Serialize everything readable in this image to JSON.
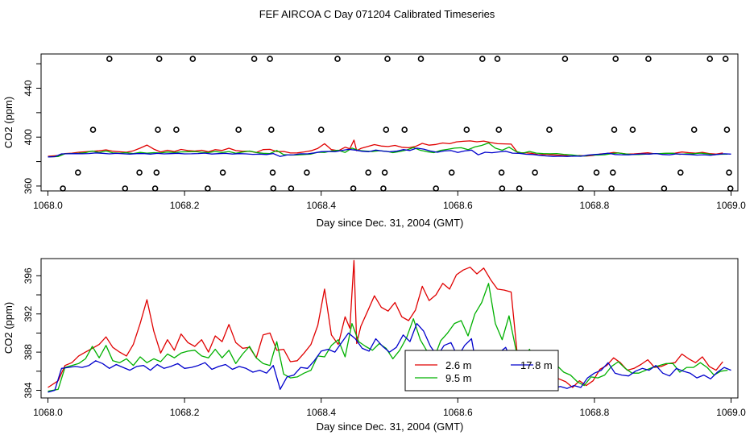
{
  "figure": {
    "title": "FEF AIRCOA C  Day 071204  Calibrated Timeseries"
  },
  "chart_data": [
    {
      "type": "scatter+line",
      "xlabel": "Day since Dec. 31, 2004 (GMT)",
      "ylabel": "CO2 (ppm)",
      "xlim": [
        1067.99,
        1069.01
      ],
      "ylim": [
        356,
        468
      ],
      "xticks": [
        1068.0,
        1068.2,
        1068.4,
        1068.6,
        1068.8,
        1069.0
      ],
      "xtick_labels": [
        "1068.0",
        "1068.2",
        "1068.4",
        "1068.6",
        "1068.8",
        "1069.0"
      ],
      "yticks": [
        360,
        380,
        400,
        420,
        440,
        460
      ],
      "ytick_labels": [
        "360",
        "",
        "400",
        "",
        "440",
        ""
      ],
      "calibration_points": [
        {
          "x": 1068.09,
          "y": 464
        },
        {
          "x": 1068.163,
          "y": 464
        },
        {
          "x": 1068.212,
          "y": 464
        },
        {
          "x": 1068.302,
          "y": 464
        },
        {
          "x": 1068.325,
          "y": 464
        },
        {
          "x": 1068.424,
          "y": 464
        },
        {
          "x": 1068.497,
          "y": 464
        },
        {
          "x": 1068.546,
          "y": 464
        },
        {
          "x": 1068.636,
          "y": 464
        },
        {
          "x": 1068.658,
          "y": 464
        },
        {
          "x": 1068.757,
          "y": 464
        },
        {
          "x": 1068.831,
          "y": 464
        },
        {
          "x": 1068.879,
          "y": 464
        },
        {
          "x": 1068.969,
          "y": 464
        },
        {
          "x": 1068.992,
          "y": 464
        },
        {
          "x": 1068.066,
          "y": 406
        },
        {
          "x": 1068.161,
          "y": 406
        },
        {
          "x": 1068.188,
          "y": 406
        },
        {
          "x": 1068.279,
          "y": 406
        },
        {
          "x": 1068.327,
          "y": 406
        },
        {
          "x": 1068.4,
          "y": 406
        },
        {
          "x": 1068.495,
          "y": 406
        },
        {
          "x": 1068.522,
          "y": 406
        },
        {
          "x": 1068.613,
          "y": 406
        },
        {
          "x": 1068.66,
          "y": 406
        },
        {
          "x": 1068.734,
          "y": 406
        },
        {
          "x": 1068.829,
          "y": 406
        },
        {
          "x": 1068.856,
          "y": 406
        },
        {
          "x": 1068.946,
          "y": 406
        },
        {
          "x": 1068.994,
          "y": 406
        },
        {
          "x": 1068.044,
          "y": 371
        },
        {
          "x": 1068.134,
          "y": 371
        },
        {
          "x": 1068.159,
          "y": 371
        },
        {
          "x": 1068.256,
          "y": 371
        },
        {
          "x": 1068.329,
          "y": 371
        },
        {
          "x": 1068.379,
          "y": 371
        },
        {
          "x": 1068.469,
          "y": 371
        },
        {
          "x": 1068.493,
          "y": 371
        },
        {
          "x": 1068.591,
          "y": 371
        },
        {
          "x": 1068.664,
          "y": 371
        },
        {
          "x": 1068.713,
          "y": 371
        },
        {
          "x": 1068.803,
          "y": 371
        },
        {
          "x": 1068.827,
          "y": 371
        },
        {
          "x": 1068.926,
          "y": 371
        },
        {
          "x": 1068.997,
          "y": 371
        },
        {
          "x": 1068.022,
          "y": 358
        },
        {
          "x": 1068.113,
          "y": 358
        },
        {
          "x": 1068.157,
          "y": 358
        },
        {
          "x": 1068.234,
          "y": 358
        },
        {
          "x": 1068.33,
          "y": 358
        },
        {
          "x": 1068.356,
          "y": 358
        },
        {
          "x": 1068.447,
          "y": 358
        },
        {
          "x": 1068.491,
          "y": 358
        },
        {
          "x": 1068.568,
          "y": 358
        },
        {
          "x": 1068.665,
          "y": 358
        },
        {
          "x": 1068.69,
          "y": 358
        },
        {
          "x": 1068.78,
          "y": 358
        },
        {
          "x": 1068.825,
          "y": 358
        },
        {
          "x": 1068.902,
          "y": 358
        },
        {
          "x": 1068.999,
          "y": 358
        }
      ]
    },
    {
      "type": "line",
      "xlabel": "Day since Dec. 31, 2004 (GMT)",
      "ylabel": "CO2 (ppm)",
      "xlim": [
        1067.99,
        1069.01
      ],
      "ylim": [
        383.2,
        397.8
      ],
      "xticks": [
        1068.0,
        1068.2,
        1068.4,
        1068.6,
        1068.8,
        1069.0
      ],
      "xtick_labels": [
        "1068.0",
        "1068.2",
        "1068.4",
        "1068.6",
        "1068.8",
        "1069.0"
      ],
      "yticks": [
        384,
        386,
        388,
        390,
        392,
        394,
        396
      ],
      "ytick_labels": [
        "384",
        "",
        "388",
        "",
        "392",
        "",
        "396"
      ],
      "legend_position": "bottom-center",
      "series": [
        {
          "name": "2.6 m",
          "color": "#e00000",
          "x": [
            1068.0,
            1068.015,
            1068.025,
            1068.035,
            1068.045,
            1068.055,
            1068.065,
            1068.075,
            1068.085,
            1068.095,
            1068.105,
            1068.115,
            1068.125,
            1068.135,
            1068.145,
            1068.155,
            1068.165,
            1068.175,
            1068.185,
            1068.195,
            1068.205,
            1068.215,
            1068.225,
            1068.235,
            1068.245,
            1068.255,
            1068.265,
            1068.275,
            1068.285,
            1068.295,
            1068.305,
            1068.315,
            1068.325,
            1068.335,
            1068.345,
            1068.355,
            1068.365,
            1068.375,
            1068.385,
            1068.395,
            1068.405,
            1068.415,
            1068.425,
            1068.435,
            1068.442,
            1068.448,
            1068.452,
            1068.458,
            1068.468,
            1068.478,
            1068.488,
            1068.498,
            1068.508,
            1068.518,
            1068.528,
            1068.538,
            1068.548,
            1068.558,
            1068.568,
            1068.578,
            1068.588,
            1068.598,
            1068.608,
            1068.618,
            1068.628,
            1068.638,
            1068.648,
            1068.658,
            1068.668,
            1068.678,
            1068.688,
            1068.698,
            1068.708,
            1068.718,
            1068.728,
            1068.738,
            1068.748,
            1068.758,
            1068.768,
            1068.778,
            1068.788,
            1068.798,
            1068.808,
            1068.818,
            1068.828,
            1068.838,
            1068.848,
            1068.858,
            1068.868,
            1068.878,
            1068.888,
            1068.898,
            1068.908,
            1068.918,
            1068.928,
            1068.938,
            1068.948,
            1068.958,
            1068.968,
            1068.978,
            1068.988
          ],
          "y": [
            384.3,
            385.0,
            386.6,
            386.9,
            387.6,
            388.0,
            388.4,
            388.8,
            389.6,
            388.5,
            388.0,
            387.6,
            388.8,
            391.0,
            393.5,
            390.2,
            387.9,
            389.3,
            388.2,
            389.9,
            389.0,
            388.6,
            389.3,
            388.0,
            389.7,
            389.1,
            390.9,
            389.0,
            388.4,
            388.5,
            387.4,
            389.8,
            390.0,
            388.2,
            388.3,
            387.0,
            387.1,
            387.9,
            388.8,
            390.8,
            394.6,
            389.8,
            388.8,
            391.7,
            390.5,
            397.6,
            388.9,
            390.7,
            392.3,
            393.9,
            392.7,
            392.3,
            393.2,
            391.7,
            391.3,
            392.4,
            394.9,
            393.4,
            394.0,
            395.2,
            394.6,
            396.1,
            396.6,
            396.9,
            396.2,
            396.8,
            395.6,
            394.6,
            394.5,
            394.3,
            387.1,
            387.2,
            386.8,
            385.6,
            385.9,
            385.5,
            385.2,
            384.9,
            384.3,
            385.0,
            384.5,
            385.0,
            386.2,
            386.6,
            387.4,
            386.9,
            386.1,
            386.3,
            386.7,
            387.2,
            386.4,
            386.5,
            386.8,
            386.9,
            387.8,
            387.3,
            386.9,
            387.5,
            386.5,
            386.1,
            387.0
          ]
        },
        {
          "name": "9.5 m",
          "color": "#00b000",
          "x": [
            1068.0,
            1068.015,
            1068.025,
            1068.035,
            1068.045,
            1068.055,
            1068.065,
            1068.075,
            1068.085,
            1068.095,
            1068.105,
            1068.115,
            1068.125,
            1068.135,
            1068.145,
            1068.155,
            1068.165,
            1068.175,
            1068.185,
            1068.195,
            1068.205,
            1068.215,
            1068.225,
            1068.235,
            1068.245,
            1068.255,
            1068.265,
            1068.275,
            1068.285,
            1068.295,
            1068.305,
            1068.315,
            1068.325,
            1068.335,
            1068.345,
            1068.355,
            1068.365,
            1068.375,
            1068.385,
            1068.395,
            1068.405,
            1068.415,
            1068.425,
            1068.435,
            1068.445,
            1068.455,
            1068.465,
            1068.475,
            1068.485,
            1068.495,
            1068.505,
            1068.515,
            1068.525,
            1068.535,
            1068.545,
            1068.555,
            1068.565,
            1068.575,
            1068.585,
            1068.595,
            1068.605,
            1068.615,
            1068.625,
            1068.635,
            1068.645,
            1068.655,
            1068.665,
            1068.675,
            1068.685,
            1068.695,
            1068.705,
            1068.715,
            1068.725,
            1068.735,
            1068.745,
            1068.755,
            1068.765,
            1068.775,
            1068.785,
            1068.795,
            1068.805,
            1068.815,
            1068.825,
            1068.835,
            1068.845,
            1068.855,
            1068.865,
            1068.875,
            1068.885,
            1068.895,
            1068.905,
            1068.915,
            1068.925,
            1068.935,
            1068.945,
            1068.955,
            1068.965,
            1068.975,
            1068.985,
            1068.995
          ],
          "y": [
            383.9,
            384.1,
            386.4,
            386.6,
            386.8,
            387.3,
            388.6,
            387.4,
            388.7,
            387.1,
            386.9,
            387.3,
            386.6,
            387.5,
            386.9,
            387.3,
            387.0,
            387.8,
            387.4,
            387.9,
            388.1,
            388.2,
            387.6,
            387.4,
            388.3,
            387.4,
            388.2,
            386.8,
            387.8,
            388.6,
            387.4,
            386.8,
            386.6,
            389.1,
            385.7,
            385.3,
            385.4,
            385.8,
            386.1,
            387.6,
            387.5,
            388.7,
            389.3,
            387.5,
            391.0,
            389.1,
            388.6,
            388.2,
            388.9,
            388.4,
            387.3,
            388.2,
            389.5,
            391.5,
            389.3,
            388.1,
            387.3,
            389.2,
            390.0,
            391.0,
            391.3,
            389.7,
            392.0,
            393.2,
            395.2,
            391.0,
            389.3,
            391.8,
            388.3,
            386.9,
            388.3,
            386.9,
            386.6,
            386.4,
            386.6,
            385.9,
            385.6,
            384.9,
            384.5,
            385.4,
            385.3,
            385.6,
            386.5,
            387.0,
            386.3,
            385.8,
            385.8,
            386.1,
            386.4,
            386.6,
            386.8,
            386.8,
            385.9,
            386.4,
            386.4,
            386.9,
            386.4,
            385.6,
            386.0,
            386.1
          ]
        },
        {
          "name": "17.8 m",
          "color": "#0000cc",
          "x": [
            1068.0,
            1068.01,
            1068.02,
            1068.03,
            1068.04,
            1068.05,
            1068.06,
            1068.07,
            1068.08,
            1068.09,
            1068.1,
            1068.11,
            1068.12,
            1068.13,
            1068.14,
            1068.15,
            1068.16,
            1068.17,
            1068.18,
            1068.19,
            1068.2,
            1068.21,
            1068.22,
            1068.23,
            1068.24,
            1068.25,
            1068.26,
            1068.27,
            1068.28,
            1068.29,
            1068.3,
            1068.31,
            1068.32,
            1068.33,
            1068.34,
            1068.35,
            1068.36,
            1068.37,
            1068.38,
            1068.39,
            1068.4,
            1068.41,
            1068.42,
            1068.43,
            1068.44,
            1068.45,
            1068.46,
            1068.47,
            1068.48,
            1068.49,
            1068.5,
            1068.51,
            1068.52,
            1068.53,
            1068.54,
            1068.55,
            1068.56,
            1068.57,
            1068.58,
            1068.59,
            1068.6,
            1068.61,
            1068.62,
            1068.63,
            1068.64,
            1068.65,
            1068.66,
            1068.67,
            1068.68,
            1068.69,
            1068.7,
            1068.71,
            1068.72,
            1068.73,
            1068.74,
            1068.75,
            1068.76,
            1068.77,
            1068.78,
            1068.79,
            1068.8,
            1068.81,
            1068.82,
            1068.83,
            1068.84,
            1068.85,
            1068.86,
            1068.87,
            1068.88,
            1068.89,
            1068.9,
            1068.91,
            1068.92,
            1068.93,
            1068.94,
            1068.95,
            1068.96,
            1068.97,
            1068.98,
            1068.99,
            1069.0
          ],
          "y": [
            383.8,
            384.0,
            386.3,
            386.4,
            386.5,
            386.4,
            386.6,
            387.1,
            386.8,
            386.3,
            386.7,
            386.4,
            386.1,
            386.5,
            386.6,
            386.1,
            386.7,
            386.3,
            386.5,
            386.8,
            386.3,
            386.4,
            386.6,
            386.9,
            386.2,
            386.5,
            386.7,
            386.2,
            386.5,
            386.3,
            385.9,
            386.1,
            385.8,
            386.6,
            384.1,
            385.4,
            385.6,
            386.4,
            386.3,
            387.1,
            388.1,
            388.3,
            388.0,
            389.0,
            390.0,
            389.4,
            388.4,
            388.1,
            389.4,
            388.6,
            388.0,
            388.5,
            389.8,
            389.1,
            391.0,
            390.2,
            388.6,
            387.6,
            388.7,
            389.0,
            387.5,
            388.7,
            389.4,
            385.5,
            387.6,
            387.2,
            387.9,
            388.5,
            386.9,
            386.8,
            386.0,
            385.8,
            385.1,
            384.6,
            384.2,
            384.4,
            384.2,
            384.5,
            384.3,
            385.3,
            385.8,
            386.1,
            386.9,
            385.8,
            385.6,
            385.5,
            386.0,
            386.3,
            386.1,
            386.6,
            385.8,
            385.5,
            386.3,
            386.0,
            385.8,
            385.3,
            385.6,
            385.2,
            385.9,
            386.4,
            386.1
          ]
        }
      ]
    }
  ]
}
